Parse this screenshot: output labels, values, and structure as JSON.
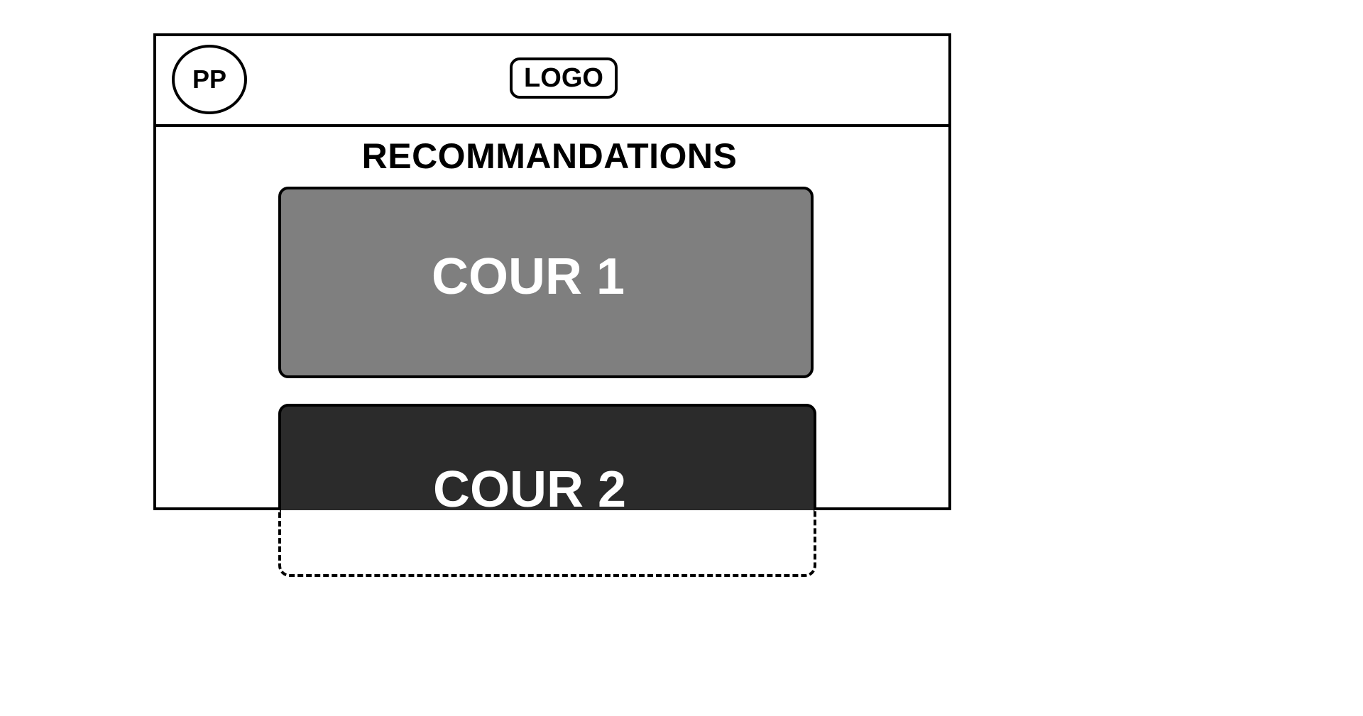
{
  "header": {
    "avatar_label": "PP",
    "logo_label": "LOGO"
  },
  "main": {
    "section_title": "RECOMMANDATIONS",
    "cards": [
      {
        "label": "COUR 1",
        "color": "#7f7f7f"
      },
      {
        "label": "COUR 2",
        "color": "#2b2b2b"
      }
    ]
  }
}
